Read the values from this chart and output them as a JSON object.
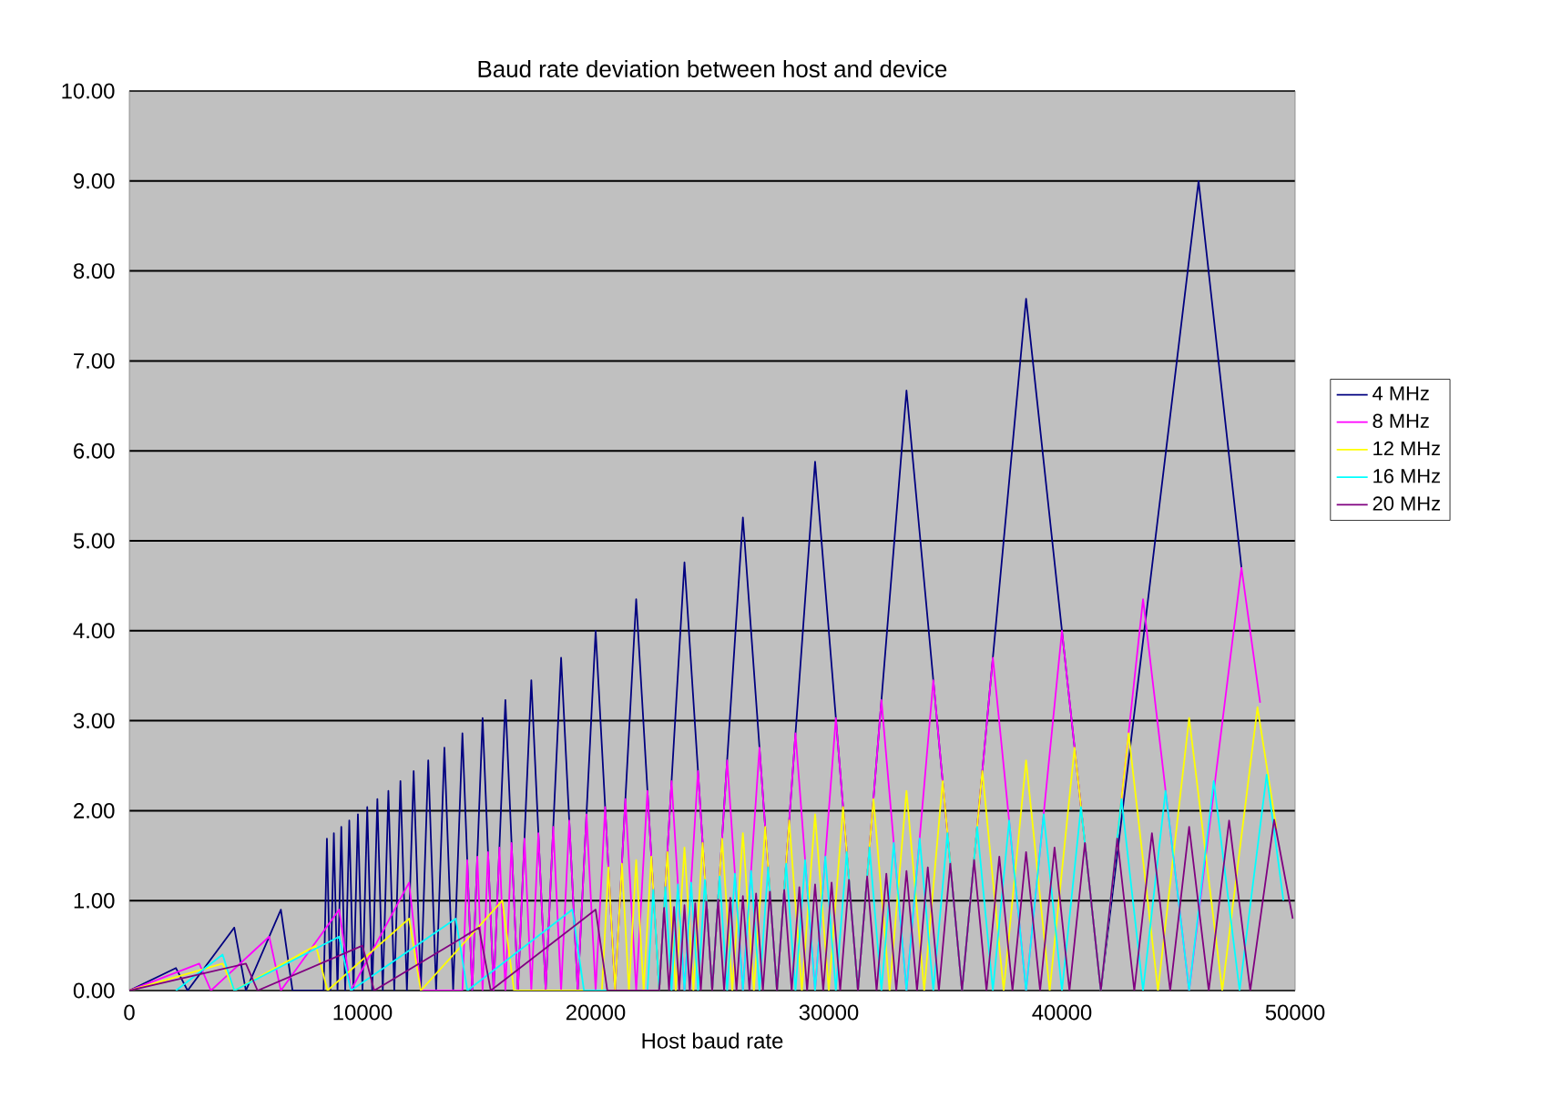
{
  "chart_data": {
    "type": "line",
    "title": "Baud rate deviation between host and device",
    "xlabel": "Host baud rate",
    "xlim": [
      0,
      50000
    ],
    "xticks": [
      0,
      10000,
      20000,
      30000,
      40000,
      50000
    ],
    "ylim": [
      0,
      10
    ],
    "yticks": [
      {
        "value": 0,
        "label": "0.00"
      },
      {
        "value": 1,
        "label": "1.00"
      },
      {
        "value": 2,
        "label": "2.00"
      },
      {
        "value": 3,
        "label": "3.00"
      },
      {
        "value": 4,
        "label": "4.00"
      },
      {
        "value": 5,
        "label": "5.00"
      },
      {
        "value": 6,
        "label": "6.00"
      },
      {
        "value": 7,
        "label": "7.00"
      },
      {
        "value": 8,
        "label": "8.00"
      },
      {
        "value": 9,
        "label": "9.00"
      },
      {
        "value": 10,
        "label": "10.00"
      }
    ],
    "grid": "y",
    "legend": "right",
    "marker": "none",
    "series": [
      {
        "name": "4 MHz",
        "color": "#000080",
        "x": [
          0,
          2000,
          2500,
          4500,
          5000,
          6500,
          7000,
          8333,
          8475,
          8621,
          8772,
          8929,
          9091,
          9259,
          9434,
          9615,
          9804,
          10000,
          10204,
          10417,
          10638,
          10870,
          11111,
          11364,
          11628,
          11905,
          12195,
          12500,
          12821,
          13158,
          13514,
          13889,
          14286,
          14706,
          15152,
          15625,
          16129,
          16667,
          17241,
          17857,
          18519,
          19231,
          20000,
          20833,
          21739,
          22727,
          23810,
          25000,
          26316,
          27778,
          29412,
          31250,
          33333,
          35714,
          38462,
          41667,
          45860,
          47700
        ],
        "values": [
          0,
          0.25,
          0,
          0.7,
          0,
          0.9,
          0,
          0,
          1.69,
          0,
          1.75,
          0,
          1.82,
          0,
          1.89,
          0,
          1.96,
          0,
          2.04,
          0,
          2.13,
          0,
          2.22,
          0,
          2.33,
          0,
          2.44,
          0,
          2.56,
          0,
          2.7,
          0,
          2.86,
          0,
          3.03,
          0,
          3.23,
          0,
          3.45,
          0,
          3.7,
          0,
          4.0,
          0,
          4.35,
          0,
          4.76,
          0,
          5.26,
          0,
          5.88,
          0,
          6.67,
          0,
          7.69,
          0,
          9.0,
          4.7
        ]
      },
      {
        "name": "8 MHz",
        "color": "#ff00ff",
        "x": [
          0,
          3000,
          3500,
          6000,
          6500,
          9000,
          9500,
          12000,
          12500,
          14286,
          14493,
          14706,
          14925,
          15152,
          15385,
          15625,
          15873,
          16129,
          16393,
          16667,
          16949,
          17241,
          17544,
          17857,
          18182,
          18519,
          18868,
          19231,
          19608,
          20000,
          20408,
          20833,
          21277,
          21739,
          22222,
          22727,
          23256,
          23810,
          24390,
          25000,
          25641,
          26316,
          27027,
          27778,
          28571,
          29412,
          30303,
          31250,
          32258,
          33333,
          34483,
          35714,
          37037,
          38462,
          40000,
          41667,
          43478,
          45455,
          47700,
          48500
        ],
        "values": [
          0,
          0.3,
          0,
          0.6,
          0,
          0.9,
          0,
          1.2,
          0,
          0,
          1.45,
          0,
          1.49,
          0,
          1.54,
          0,
          1.59,
          0,
          1.64,
          0,
          1.69,
          0,
          1.75,
          0,
          1.82,
          0,
          1.89,
          0,
          1.96,
          0,
          2.04,
          0,
          2.13,
          0,
          2.22,
          0,
          2.33,
          0,
          2.44,
          0,
          2.56,
          0,
          2.7,
          0,
          2.86,
          0,
          3.03,
          0,
          3.23,
          0,
          3.45,
          0,
          3.7,
          0,
          4.0,
          0,
          4.35,
          0,
          4.7,
          3.2
        ]
      },
      {
        "name": "12 MHz",
        "color": "#ffff00",
        "x": [
          0,
          4000,
          4500,
          8000,
          8500,
          12000,
          12500,
          16000,
          16500,
          20270,
          20548,
          20833,
          21127,
          21429,
          21739,
          22059,
          22388,
          22727,
          23077,
          23438,
          23810,
          24194,
          24590,
          25000,
          25424,
          25862,
          26316,
          26786,
          27273,
          27778,
          28302,
          28846,
          29412,
          30000,
          30612,
          31250,
          31915,
          32609,
          33333,
          34091,
          34884,
          35714,
          36585,
          37500,
          38462,
          39474,
          40541,
          41667,
          42857,
          44118,
          45455,
          46875,
          48387,
          49200
        ],
        "values": [
          0,
          0.3,
          0,
          0.5,
          0,
          0.8,
          0,
          1.0,
          0,
          0,
          1.37,
          0,
          1.41,
          0,
          1.45,
          0,
          1.49,
          0,
          1.54,
          0,
          1.59,
          0,
          1.64,
          0,
          1.69,
          0,
          1.75,
          0,
          1.82,
          0,
          1.89,
          0,
          1.96,
          0,
          2.04,
          0,
          2.13,
          0,
          2.22,
          0,
          2.33,
          0,
          2.44,
          0,
          2.56,
          0,
          2.7,
          0,
          2.86,
          0,
          3.03,
          0,
          3.15,
          1.8
        ]
      },
      {
        "name": "16 MHz",
        "color": "#00ffff",
        "x": [
          2000,
          4000,
          4500,
          9000,
          9500,
          14000,
          14500,
          19000,
          19500,
          22222,
          22472,
          22727,
          22989,
          23256,
          23529,
          23810,
          24096,
          24390,
          24691,
          25000,
          25316,
          25641,
          25974,
          26316,
          26667,
          27027,
          27397,
          27778,
          28169,
          28571,
          28986,
          29412,
          29851,
          30303,
          30769,
          31250,
          31746,
          32258,
          32787,
          33333,
          33898,
          34483,
          35088,
          35714,
          36364,
          37037,
          37736,
          38462,
          39216,
          40000,
          40816,
          41667,
          42553,
          43478,
          44444,
          45455,
          46512,
          47619,
          48780,
          49500
        ],
        "values": [
          0,
          0.4,
          0,
          0.6,
          0,
          0.8,
          0,
          0.9,
          0,
          0,
          1.12,
          0,
          1.15,
          0,
          1.18,
          0,
          1.2,
          0,
          1.23,
          0,
          1.27,
          0,
          1.3,
          0,
          1.33,
          0,
          1.37,
          0,
          1.41,
          0,
          1.45,
          0,
          1.49,
          0,
          1.54,
          0,
          1.59,
          0,
          1.64,
          0,
          1.69,
          0,
          1.75,
          0,
          1.82,
          0,
          1.89,
          0,
          1.96,
          0,
          2.04,
          0,
          2.13,
          0,
          2.22,
          0,
          2.33,
          0,
          2.4,
          1.0
        ]
      },
      {
        "name": "20 MHz",
        "color": "#800080",
        "x": [
          0,
          5000,
          5500,
          10000,
          10500,
          15000,
          15500,
          20000,
          20500,
          22727,
          22936,
          23148,
          23364,
          23585,
          23810,
          24038,
          24272,
          24510,
          24752,
          25000,
          25253,
          25510,
          25773,
          26042,
          26316,
          26596,
          26882,
          27174,
          27473,
          27778,
          28090,
          28409,
          28736,
          29070,
          29412,
          29762,
          30120,
          30488,
          30864,
          31250,
          31646,
          32051,
          32468,
          32895,
          33333,
          33784,
          34247,
          34722,
          35211,
          35714,
          36232,
          36765,
          37313,
          37879,
          38462,
          39063,
          39683,
          40323,
          40984,
          41667,
          42373,
          43103,
          43860,
          44643,
          45455,
          46296,
          47170,
          48077,
          49100,
          49900
        ],
        "values": [
          0,
          0.3,
          0,
          0.5,
          0,
          0.7,
          0,
          0.9,
          0,
          0,
          0.92,
          0,
          0.93,
          0,
          0.95,
          0,
          0.97,
          0,
          0.99,
          0,
          1.01,
          0,
          1.03,
          0,
          1.05,
          0,
          1.08,
          0,
          1.1,
          0,
          1.12,
          0,
          1.15,
          0,
          1.18,
          0,
          1.2,
          0,
          1.23,
          0,
          1.27,
          0,
          1.3,
          0,
          1.33,
          0,
          1.37,
          0,
          1.41,
          0,
          1.45,
          0,
          1.49,
          0,
          1.54,
          0,
          1.59,
          0,
          1.64,
          0,
          1.69,
          0,
          1.75,
          0,
          1.82,
          0,
          1.89,
          0,
          1.9,
          0.8
        ]
      }
    ]
  }
}
